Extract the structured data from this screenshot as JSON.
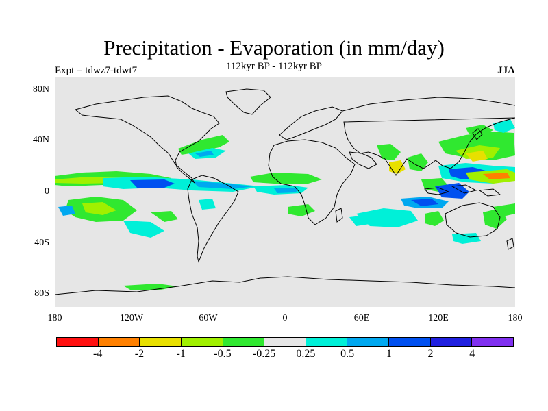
{
  "header": {
    "title": "Precipitation - Evaporation (in mm/day)",
    "subtitle": "112kyr BP - 112kyr BP",
    "left_label": "Expt = tdwz7-tdwt7",
    "right_label": "JJA"
  },
  "map": {
    "projection": "cylindrical-equidistant",
    "lon_range": [
      -180,
      180
    ],
    "lat_range": [
      -90,
      90
    ],
    "background_color": "#e6e6e6",
    "coastline_color": "#000000",
    "lat_ticks": [
      {
        "value": 80,
        "label": "80N"
      },
      {
        "value": 40,
        "label": "40N"
      },
      {
        "value": 0,
        "label": "0"
      },
      {
        "value": -40,
        "label": "40S"
      },
      {
        "value": -80,
        "label": "80S"
      }
    ],
    "lon_ticks": [
      {
        "value": -180,
        "label": "180"
      },
      {
        "value": -120,
        "label": "120W"
      },
      {
        "value": -60,
        "label": "60W"
      },
      {
        "value": 0,
        "label": "0"
      },
      {
        "value": 60,
        "label": "60E"
      },
      {
        "value": 120,
        "label": "120E"
      },
      {
        "value": 180,
        "label": "180"
      }
    ]
  },
  "colorbar": {
    "colors": [
      "#ff1010",
      "#ff8000",
      "#e8e000",
      "#a0f000",
      "#30e830",
      "#e6e6e6",
      "#00f0d8",
      "#00a8f0",
      "#0050f0",
      "#2020e0",
      "#8030f0"
    ],
    "labels": [
      "-4",
      "-2",
      "-1",
      "-0.5",
      "-0.25",
      "0.25",
      "0.5",
      "1",
      "2",
      "4"
    ]
  }
}
